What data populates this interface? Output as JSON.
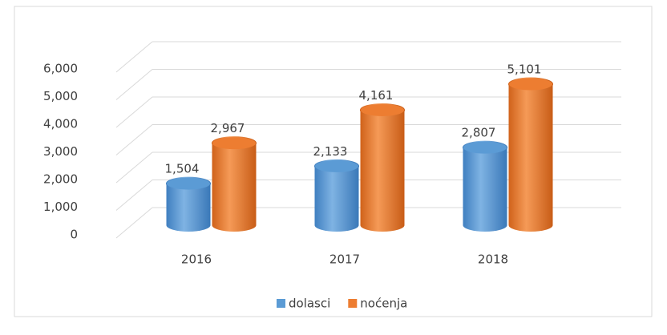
{
  "chart_data": {
    "type": "bar3d",
    "categories": [
      "2016",
      "2017",
      "2018"
    ],
    "series": [
      {
        "name": "dolasci",
        "color": "#5b9bd5",
        "values": [
          1504,
          2133,
          2807
        ],
        "value_labels": [
          "1,504",
          "2,133",
          "2,807"
        ]
      },
      {
        "name": "noćenja",
        "color": "#ed7d31",
        "values": [
          2967,
          4161,
          5101
        ],
        "value_labels": [
          "2,967",
          "4,161",
          "5,101"
        ]
      }
    ],
    "ylim": [
      0,
      6000
    ],
    "yticks": [
      0,
      {
        "value": 1000,
        "label": "1,000"
      },
      {
        "value": 2000,
        "label": "2,000"
      },
      {
        "value": 3000,
        "label": "3,000"
      },
      {
        "value": 4000,
        "label": "4,000"
      },
      {
        "value": 5000,
        "label": "5,000"
      },
      {
        "value": 6000,
        "label": "6,000"
      }
    ],
    "grid": true,
    "legend": "bottom"
  }
}
